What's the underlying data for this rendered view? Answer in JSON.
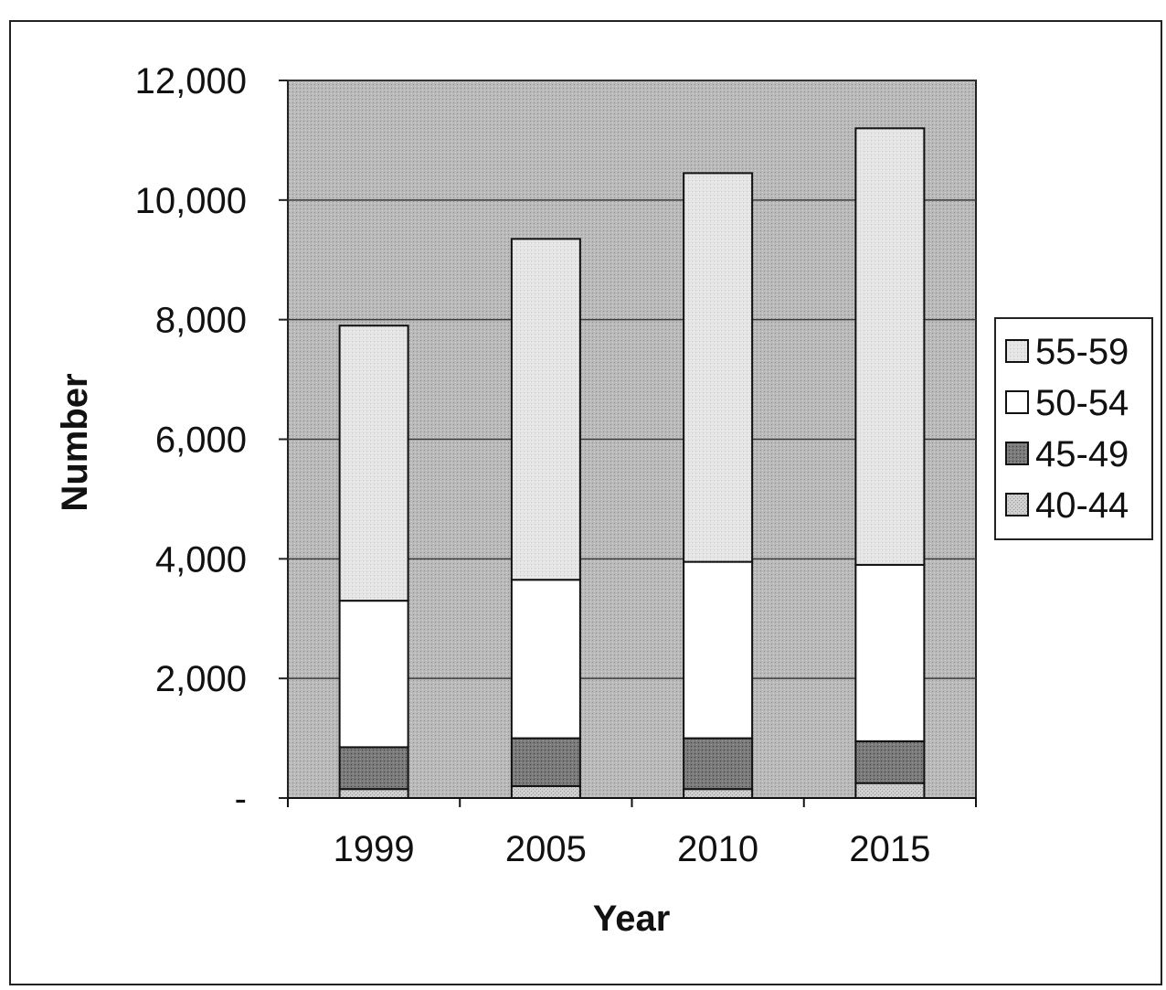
{
  "chart_data": {
    "type": "bar",
    "stacked": true,
    "xlabel": "Year",
    "ylabel": "Number",
    "categories": [
      "1999",
      "2005",
      "2010",
      "2015"
    ],
    "ylim": [
      0,
      12000
    ],
    "yticks": [
      0,
      2000,
      4000,
      6000,
      8000,
      10000,
      12000
    ],
    "ytick_labels": [
      "-",
      "2,000",
      "4,000",
      "6,000",
      "8,000",
      "10,000",
      "12,000"
    ],
    "grid": true,
    "legend_position": "right",
    "series": [
      {
        "name": "40-44",
        "values": [
          150,
          200,
          150,
          250
        ],
        "color": "#c8c8c8",
        "pattern": "light-dots"
      },
      {
        "name": "45-49",
        "values": [
          700,
          800,
          850,
          700
        ],
        "color": "#7d7d7d",
        "pattern": "dark-dots"
      },
      {
        "name": "50-54",
        "values": [
          2450,
          2650,
          2950,
          2950
        ],
        "color": "#ffffff",
        "pattern": "none"
      },
      {
        "name": "55-59",
        "values": [
          4600,
          5700,
          6500,
          7300
        ],
        "color": "#e3e3e3",
        "pattern": "faint-dots"
      }
    ],
    "legend_order": [
      "55-59",
      "50-54",
      "45-49",
      "40-44"
    ],
    "plot_background": "#b9b9b9"
  }
}
